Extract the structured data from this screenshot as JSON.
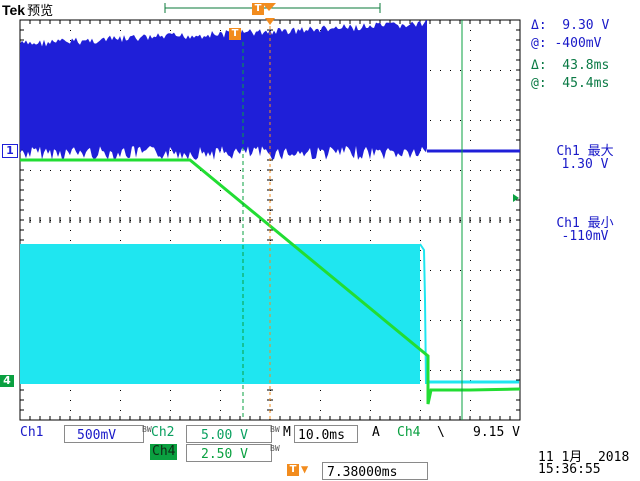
{
  "header": {
    "brand": "Tek",
    "mode": "预览"
  },
  "measurements": {
    "delta_v": "Δ:  9.30 V",
    "at_v": "@: -400mV",
    "delta_t": "Δ:  43.8ms",
    "at_t": "@:  45.4ms"
  },
  "readouts": {
    "max_label": "Ch1 最大",
    "max_value": "1.30 V",
    "min_label": "Ch1 最小",
    "min_value": "-110mV"
  },
  "channels": {
    "ch1_label": "Ch1",
    "ch1_scale": "500mV",
    "ch2_label": "Ch2",
    "ch2_scale": "5.00 V",
    "ch4_label": "Ch4",
    "ch4_scale": "2.50 V",
    "bw_mark": "BW"
  },
  "timebase": {
    "m_label": "M",
    "m_value": "10.0ms",
    "a_label": "A",
    "trig_source": "Ch4",
    "trig_slope": "\\",
    "trig_level": "9.15 V",
    "trig_pos": "7.38000ms"
  },
  "markers": {
    "ch1_num": "1",
    "ch4_num": "4",
    "trigger_marker": "T"
  },
  "datetime": {
    "date": "11 1月  2018",
    "time": "15:36:55"
  },
  "colors": {
    "ch1": "#1f1fd8",
    "ch2": "#22dd33",
    "ch4": "#1fe6f0",
    "grid": "#000000",
    "trigger": "#f28c1e",
    "measure_text": "#0b7a45"
  }
}
